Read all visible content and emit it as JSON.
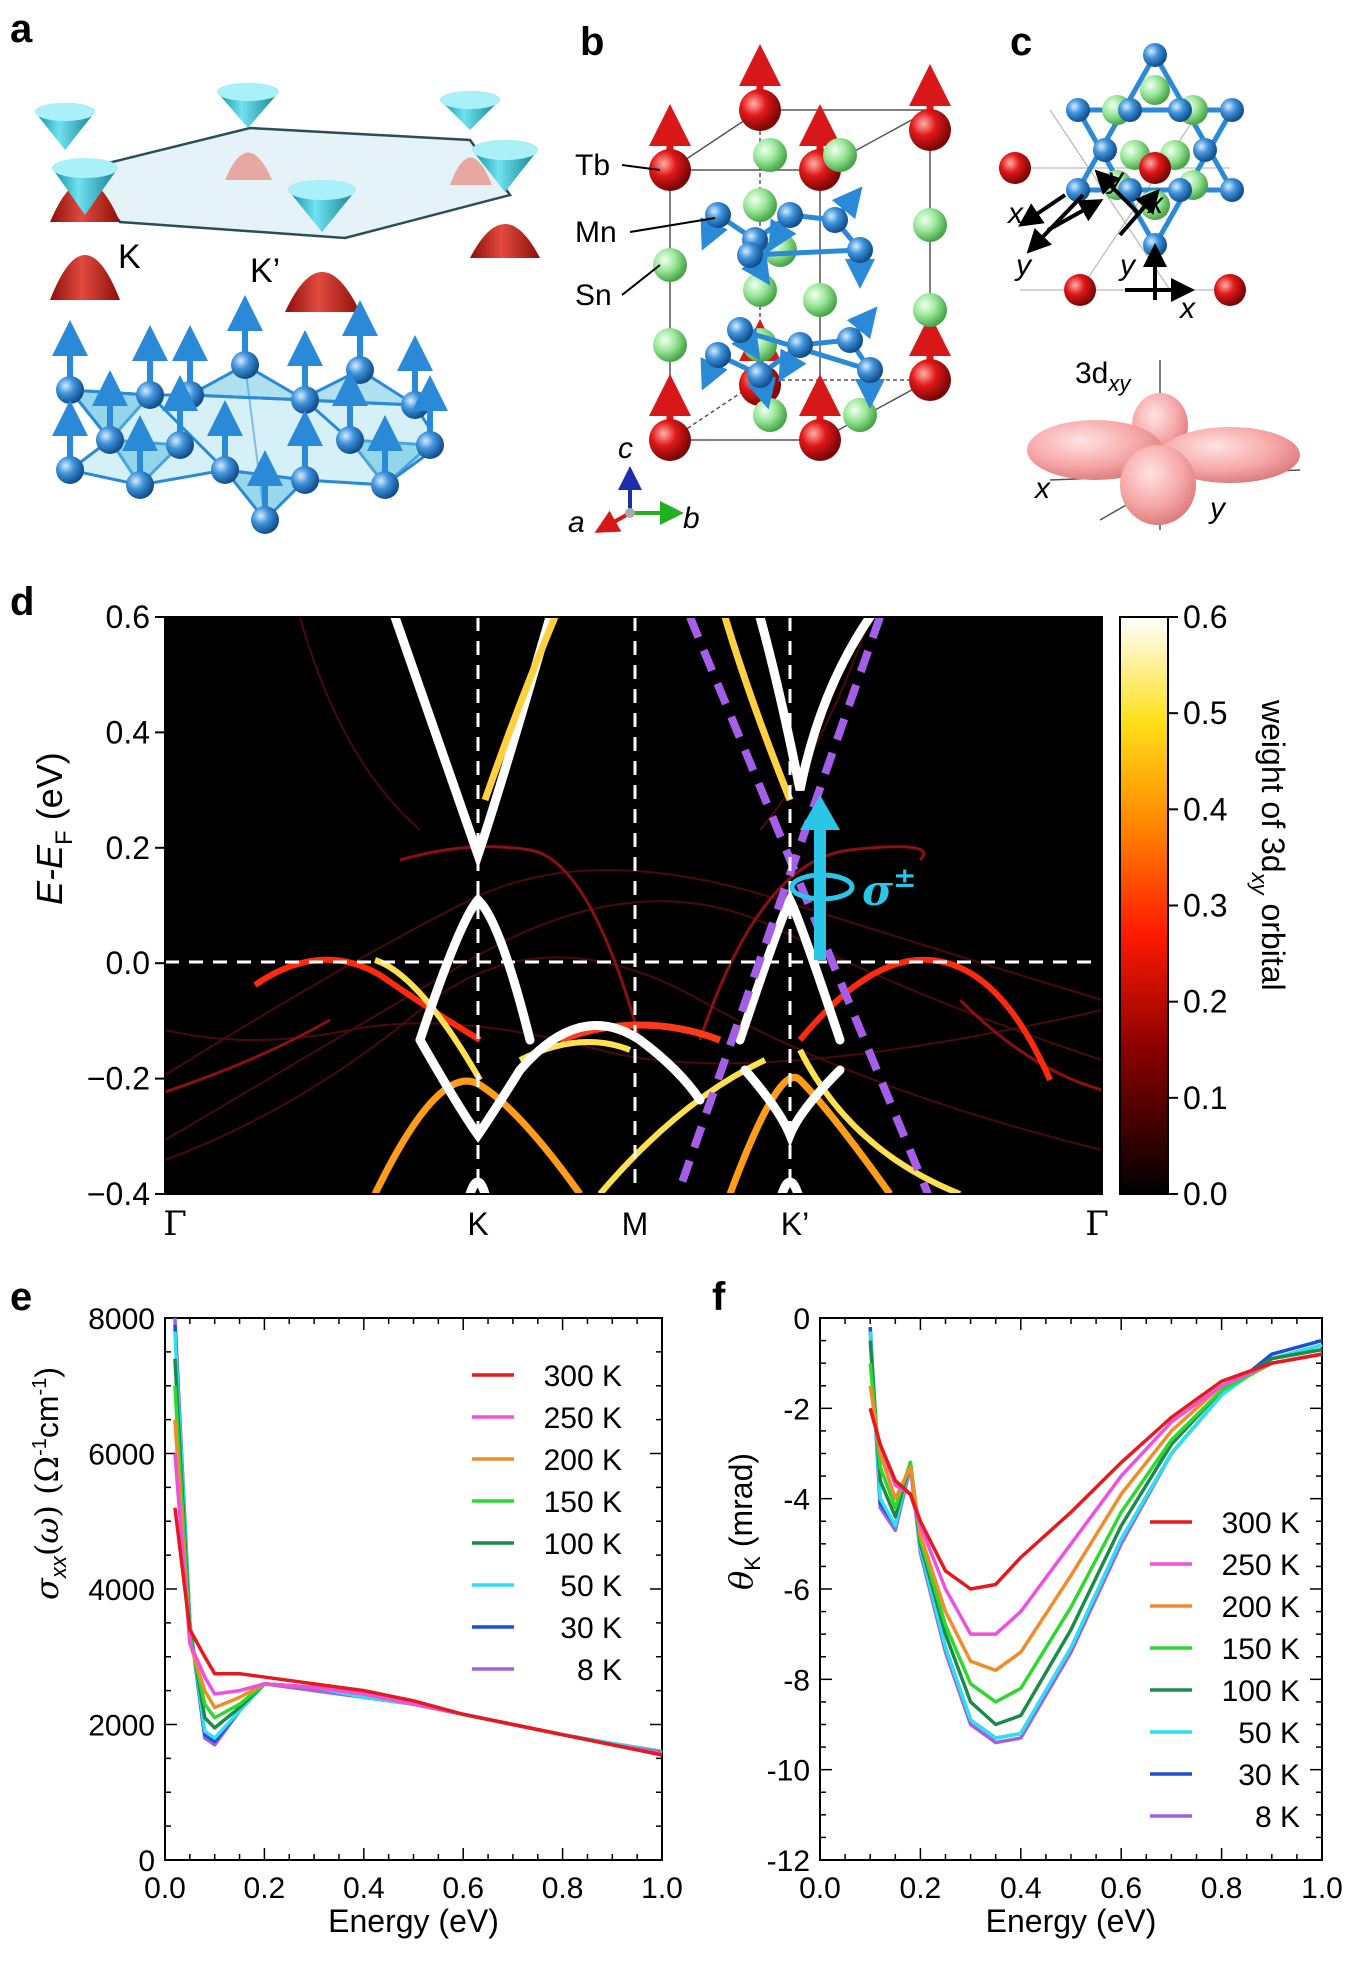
{
  "panels": {
    "a": {
      "label": "a",
      "valley_left": "K",
      "valley_right": "K’"
    },
    "b": {
      "label": "b",
      "atoms": [
        "Tb",
        "Mn",
        "Sn"
      ],
      "axes": {
        "a": "a",
        "b": "b",
        "c": "c"
      }
    },
    "c": {
      "label": "c",
      "orbital_main": "3d",
      "orbital_sub": "xy",
      "axis_x": "x",
      "axis_y": "y"
    },
    "d": {
      "label": "d",
      "ylabel_main": "E-E",
      "ylabel_sub": "F",
      "ylabel_unit": " (eV)",
      "yticks": [
        "0.6",
        "0.4",
        "0.2",
        "0.0",
        "−0.2",
        "−0.4"
      ],
      "kpoints": [
        "Γ",
        "K",
        "M",
        "K’",
        "Γ"
      ],
      "colorbar_ticks": [
        "0.6",
        "0.5",
        "0.4",
        "0.3",
        "0.2",
        "0.1",
        "0.0"
      ],
      "colorbar_label_main": "weight of 3d",
      "colorbar_label_sub": "xy",
      "colorbar_label_end": " orbital",
      "sigma_label": "σ",
      "sigma_sup": "±"
    },
    "e": {
      "label": "e",
      "xlabel": "Energy (eV)"
    },
    "f": {
      "label": "f",
      "xlabel": "Energy (eV)"
    }
  },
  "colors": {
    "spin_blue": "#2a8ad8",
    "tb_red": "#d81818",
    "sn_green": "#8fe08f",
    "cone_cyan": "#3ec4d8",
    "cone_red": "#c0281c",
    "sigma_cyan": "#29c6e8",
    "dashed_purple": "#a55ee8"
  },
  "chart_data": [
    {
      "id": "e",
      "type": "line",
      "title": "",
      "xlabel": "Energy (eV)",
      "ylabel": "σxx(ω) (Ω⁻¹cm⁻¹)",
      "xlim": [
        0.0,
        1.0
      ],
      "ylim": [
        0,
        8000
      ],
      "xticks": [
        "0.0",
        "0.2",
        "0.4",
        "0.6",
        "0.8",
        "1.0"
      ],
      "yticks": [
        "0",
        "2000",
        "4000",
        "6000",
        "8000"
      ],
      "legend_position": "top-right",
      "x": [
        0.02,
        0.05,
        0.08,
        0.1,
        0.15,
        0.2,
        0.3,
        0.4,
        0.5,
        0.6,
        0.7,
        0.8,
        0.9,
        1.0
      ],
      "series": [
        {
          "name": "300 K",
          "color": "#e41a1c",
          "values": [
            5200,
            3400,
            3000,
            2750,
            2750,
            2700,
            2600,
            2500,
            2350,
            2150,
            2000,
            1850,
            1700,
            1550
          ]
        },
        {
          "name": "250 K",
          "color": "#f050e0",
          "values": [
            6000,
            3200,
            2700,
            2450,
            2500,
            2600,
            2550,
            2450,
            2300,
            2150,
            2000,
            1850,
            1700,
            1580
          ]
        },
        {
          "name": "200 K",
          "color": "#f28c28",
          "values": [
            6500,
            3200,
            2500,
            2250,
            2400,
            2600,
            2550,
            2450,
            2300,
            2150,
            2000,
            1850,
            1700,
            1580
          ]
        },
        {
          "name": "150 K",
          "color": "#2ed82e",
          "values": [
            7000,
            3300,
            2300,
            2100,
            2300,
            2600,
            2550,
            2450,
            2300,
            2150,
            2000,
            1850,
            1700,
            1580
          ]
        },
        {
          "name": "100 K",
          "color": "#1a8c4a",
          "values": [
            7400,
            3400,
            2100,
            1950,
            2250,
            2600,
            2550,
            2450,
            2300,
            2150,
            2000,
            1850,
            1700,
            1590
          ]
        },
        {
          "name": "50 K",
          "color": "#2ee0f0",
          "values": [
            7800,
            3500,
            1900,
            1800,
            2200,
            2600,
            2550,
            2400,
            2300,
            2150,
            2000,
            1850,
            1720,
            1600
          ]
        },
        {
          "name": "30 K",
          "color": "#1a4fd8",
          "values": [
            7900,
            3500,
            1850,
            1750,
            2200,
            2600,
            2550,
            2400,
            2300,
            2150,
            2000,
            1850,
            1720,
            1600
          ]
        },
        {
          "name": "8 K",
          "color": "#a060e0",
          "values": [
            8000,
            3500,
            1800,
            1700,
            2200,
            2600,
            2500,
            2400,
            2300,
            2150,
            2000,
            1850,
            1720,
            1600
          ]
        }
      ]
    },
    {
      "id": "f",
      "type": "line",
      "title": "",
      "xlabel": "Energy (eV)",
      "ylabel": "θK (mrad)",
      "xlim": [
        0.0,
        1.0
      ],
      "ylim": [
        -12,
        0
      ],
      "xticks": [
        "0.0",
        "0.2",
        "0.4",
        "0.6",
        "0.8",
        "1.0"
      ],
      "yticks": [
        "0",
        "-2",
        "-4",
        "-6",
        "-8",
        "-10",
        "-12"
      ],
      "legend_position": "bottom-right",
      "x": [
        0.1,
        0.12,
        0.15,
        0.18,
        0.2,
        0.25,
        0.3,
        0.35,
        0.4,
        0.5,
        0.6,
        0.7,
        0.8,
        0.9,
        1.0
      ],
      "series": [
        {
          "name": "300 K",
          "color": "#e41a1c",
          "values": [
            -2.0,
            -2.8,
            -3.6,
            -3.9,
            -4.5,
            -5.6,
            -6.0,
            -5.9,
            -5.3,
            -4.3,
            -3.2,
            -2.2,
            -1.4,
            -1.0,
            -0.8
          ]
        },
        {
          "name": "250 K",
          "color": "#f050e0",
          "values": [
            -2.0,
            -2.8,
            -3.7,
            -3.9,
            -4.6,
            -6.0,
            -7.0,
            -7.0,
            -6.5,
            -5.0,
            -3.5,
            -2.3,
            -1.5,
            -1.0,
            -0.8
          ]
        },
        {
          "name": "200 K",
          "color": "#f28c28",
          "values": [
            -1.5,
            -3.0,
            -4.0,
            -3.3,
            -4.8,
            -6.5,
            -7.6,
            -7.8,
            -7.4,
            -5.7,
            -3.9,
            -2.5,
            -1.5,
            -1.0,
            -0.8
          ]
        },
        {
          "name": "150 K",
          "color": "#2ed82e",
          "values": [
            -1.0,
            -3.3,
            -4.2,
            -3.2,
            -4.9,
            -6.8,
            -8.1,
            -8.5,
            -8.2,
            -6.4,
            -4.3,
            -2.7,
            -1.6,
            -1.0,
            -0.8
          ]
        },
        {
          "name": "100 K",
          "color": "#1a8c4a",
          "values": [
            -0.5,
            -3.6,
            -4.4,
            -3.2,
            -5.0,
            -7.0,
            -8.5,
            -9.0,
            -8.8,
            -6.9,
            -4.6,
            -2.8,
            -1.6,
            -0.9,
            -0.7
          ]
        },
        {
          "name": "50 K",
          "color": "#2ee0f0",
          "values": [
            -0.3,
            -4.0,
            -4.6,
            -3.2,
            -5.1,
            -7.3,
            -8.9,
            -9.3,
            -9.2,
            -7.3,
            -4.9,
            -3.0,
            -1.7,
            -0.9,
            -0.6
          ]
        },
        {
          "name": "30 K",
          "color": "#1a4fd8",
          "values": [
            -0.2,
            -4.1,
            -4.6,
            -3.2,
            -5.1,
            -7.3,
            -8.9,
            -9.3,
            -9.2,
            -7.3,
            -4.9,
            -3.0,
            -1.7,
            -0.8,
            -0.5
          ]
        },
        {
          "name": "8 K",
          "color": "#a060e0",
          "values": [
            -0.3,
            -4.2,
            -4.7,
            -3.3,
            -5.2,
            -7.4,
            -9.0,
            -9.4,
            -9.3,
            -7.4,
            -5.0,
            -3.0,
            -1.7,
            -0.9,
            -0.6
          ]
        }
      ]
    }
  ]
}
